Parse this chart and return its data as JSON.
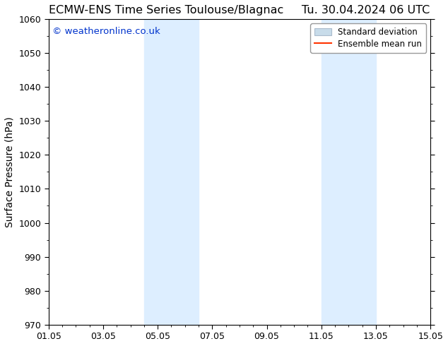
{
  "title": "ECMW-ENS Time Series Toulouse/Blagnac     Tu. 30.04.2024 06 UTC",
  "title_left": "ECMW-ENS Time Series Toulouse/Blagnac",
  "title_right": "Tu. 30.04.2024 06 UTC",
  "ylabel": "Surface Pressure (hPa)",
  "ylim": [
    970,
    1060
  ],
  "yticks": [
    970,
    980,
    990,
    1000,
    1010,
    1020,
    1030,
    1040,
    1050,
    1060
  ],
  "xtick_labels": [
    "01.05",
    "03.05",
    "05.05",
    "07.05",
    "09.05",
    "11.05",
    "13.05",
    "15.05"
  ],
  "xtick_positions": [
    0,
    2,
    4,
    6,
    8,
    10,
    12,
    14
  ],
  "shaded_bands": [
    {
      "x_start": 3.5,
      "x_end": 5.5
    },
    {
      "x_start": 10.0,
      "x_end": 12.0
    }
  ],
  "shade_color": "#ddeeff",
  "watermark_text": "© weatheronline.co.uk",
  "watermark_color": "#0033cc",
  "legend_std_color": "#c8dcea",
  "legend_std_edge": "#aabbcc",
  "legend_mean_color": "#ff3300",
  "background_color": "#ffffff",
  "plot_bg_color": "#ffffff",
  "title_fontsize": 11.5,
  "axis_label_fontsize": 10,
  "tick_fontsize": 9,
  "watermark_fontsize": 9.5,
  "legend_fontsize": 8.5
}
